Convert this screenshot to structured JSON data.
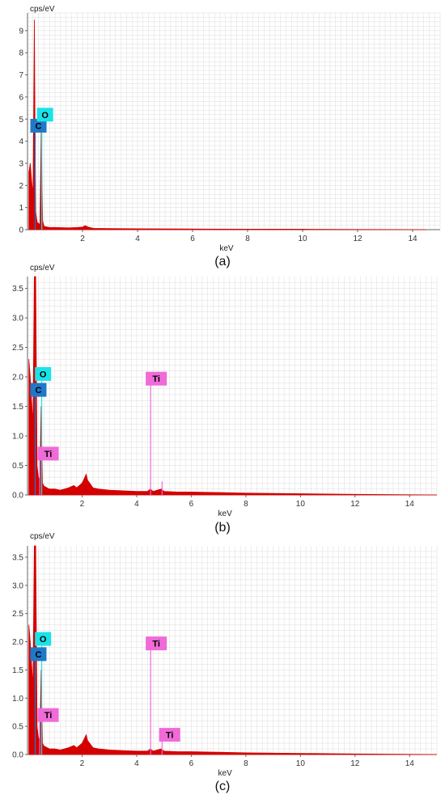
{
  "colors": {
    "spectrum": "#d40000",
    "C": "#1f78c8",
    "O": "#19e3e8",
    "Ti": "#f06ad8",
    "grid": "#dcdcdc"
  },
  "chart_data": [
    {
      "type": "area",
      "caption": "(a)",
      "xlabel": "keV",
      "ylabel": "cps/eV",
      "xlim": [
        0,
        15
      ],
      "ylim": [
        0,
        9.8
      ],
      "xticks": [
        "2",
        "4",
        "6",
        "8",
        "10",
        "12",
        "14"
      ],
      "xtick_values": [
        2,
        4,
        6,
        8,
        10,
        12,
        14
      ],
      "yticks": [
        "0",
        "1",
        "2",
        "3",
        "4",
        "5",
        "6",
        "7",
        "8",
        "9"
      ],
      "ytick_values": [
        0,
        1,
        2,
        3,
        4,
        5,
        6,
        7,
        8,
        9
      ],
      "x_end": 14.5,
      "spectrum": {
        "x": [
          0.05,
          0.1,
          0.15,
          0.2,
          0.25,
          0.28,
          0.3,
          0.33,
          0.36,
          0.4,
          0.45,
          0.5,
          0.55,
          0.6,
          0.8,
          1.0,
          1.5,
          1.8,
          2.0,
          2.1,
          2.2,
          2.4,
          3.0,
          4.0,
          6.0,
          8.0,
          10.0,
          12.0,
          14.5
        ],
        "y": [
          2.6,
          3.0,
          2.2,
          1.6,
          9.5,
          3.2,
          0.8,
          0.5,
          0.3,
          0.3,
          0.2,
          4.5,
          0.4,
          0.15,
          0.1,
          0.1,
          0.08,
          0.1,
          0.12,
          0.18,
          0.12,
          0.06,
          0.05,
          0.04,
          0.03,
          0.02,
          0.02,
          0.01,
          0.0
        ]
      },
      "peaks": [
        {
          "element": "C",
          "x": 0.28,
          "y": 4.7
        },
        {
          "element": "O",
          "x": 0.52,
          "y": 5.2
        }
      ]
    },
    {
      "type": "area",
      "caption": "(b)",
      "xlabel": "keV",
      "ylabel": "cps/eV",
      "xlim": [
        0,
        15
      ],
      "ylim": [
        0,
        3.7
      ],
      "xticks": [
        "2",
        "4",
        "6",
        "8",
        "10",
        "12",
        "14"
      ],
      "xtick_values": [
        2,
        4,
        6,
        8,
        10,
        12,
        14
      ],
      "yticks": [
        "0.0",
        "0.5",
        "1.0",
        "1.5",
        "2.0",
        "2.5",
        "3.0",
        "3.5"
      ],
      "ytick_values": [
        0,
        0.5,
        1.0,
        1.5,
        2.0,
        2.5,
        3.0,
        3.5
      ],
      "x_end": 15,
      "spectrum": {
        "x": [
          0.05,
          0.1,
          0.15,
          0.2,
          0.25,
          0.28,
          0.3,
          0.35,
          0.4,
          0.45,
          0.5,
          0.55,
          0.6,
          0.8,
          1.0,
          1.2,
          1.5,
          1.7,
          1.8,
          2.0,
          2.1,
          2.15,
          2.2,
          2.4,
          2.6,
          3.0,
          3.5,
          4.0,
          4.4,
          4.5,
          4.6,
          4.9,
          5.0,
          5.5,
          6.0,
          7.0,
          8.0,
          10.0,
          12.0,
          15.0
        ],
        "y": [
          2.3,
          2.0,
          1.6,
          1.2,
          3.7,
          3.7,
          3.7,
          0.5,
          0.3,
          0.25,
          1.5,
          0.2,
          0.15,
          0.1,
          0.1,
          0.08,
          0.12,
          0.16,
          0.12,
          0.2,
          0.3,
          0.35,
          0.25,
          0.12,
          0.1,
          0.08,
          0.07,
          0.06,
          0.06,
          0.1,
          0.06,
          0.1,
          0.06,
          0.05,
          0.05,
          0.04,
          0.03,
          0.02,
          0.01,
          0.0
        ]
      },
      "peaks": [
        {
          "element": "C",
          "x": 0.28,
          "y": 1.78
        },
        {
          "element": "O",
          "x": 0.52,
          "y": 2.05
        },
        {
          "element": "Ti",
          "x": 0.45,
          "y": 0.62
        },
        {
          "element": "Ti",
          "x": 4.51,
          "y": 1.9
        },
        {
          "element": "Ti",
          "x": 4.93,
          "y": 0.23
        }
      ],
      "peak_labels": [
        {
          "text": "O",
          "x": 0.45,
          "y": 2.05
        },
        {
          "text": "C",
          "x": 0.28,
          "y": 1.78
        },
        {
          "text": "Ti",
          "x": 0.55,
          "y": 0.7
        },
        {
          "text": "Ti",
          "x": 4.51,
          "y": 1.97
        }
      ]
    },
    {
      "type": "area",
      "caption": "(c)",
      "xlabel": "keV",
      "ylabel": "cps/eV",
      "xlim": [
        0,
        15
      ],
      "ylim": [
        0,
        3.7
      ],
      "xticks": [
        "2",
        "4",
        "6",
        "8",
        "10",
        "12",
        "14"
      ],
      "xtick_values": [
        2,
        4,
        6,
        8,
        10,
        12,
        14
      ],
      "yticks": [
        "0.0",
        "0.5",
        "1.0",
        "1.5",
        "2.0",
        "2.5",
        "3.0",
        "3.5"
      ],
      "ytick_values": [
        0,
        0.5,
        1.0,
        1.5,
        2.0,
        2.5,
        3.0,
        3.5
      ],
      "x_end": 15,
      "spectrum": {
        "x": [
          0.05,
          0.1,
          0.15,
          0.2,
          0.25,
          0.28,
          0.3,
          0.35,
          0.4,
          0.45,
          0.5,
          0.55,
          0.6,
          0.8,
          1.0,
          1.2,
          1.5,
          1.7,
          1.8,
          2.0,
          2.1,
          2.15,
          2.2,
          2.4,
          2.6,
          3.0,
          3.5,
          4.0,
          4.4,
          4.5,
          4.6,
          4.9,
          5.0,
          5.5,
          6.0,
          7.0,
          8.0,
          10.0,
          12.0,
          15.0
        ],
        "y": [
          2.3,
          2.0,
          1.6,
          1.2,
          3.7,
          3.7,
          3.7,
          0.5,
          0.3,
          0.25,
          1.5,
          0.2,
          0.15,
          0.1,
          0.1,
          0.08,
          0.12,
          0.16,
          0.12,
          0.2,
          0.3,
          0.35,
          0.25,
          0.12,
          0.1,
          0.08,
          0.07,
          0.06,
          0.06,
          0.1,
          0.06,
          0.1,
          0.06,
          0.05,
          0.05,
          0.04,
          0.03,
          0.02,
          0.01,
          0.0
        ]
      },
      "peaks": [
        {
          "element": "C",
          "x": 0.28,
          "y": 1.78
        },
        {
          "element": "O",
          "x": 0.52,
          "y": 2.05
        },
        {
          "element": "Ti",
          "x": 0.45,
          "y": 0.62
        },
        {
          "element": "Ti",
          "x": 4.51,
          "y": 1.9
        },
        {
          "element": "Ti",
          "x": 4.93,
          "y": 0.23
        }
      ],
      "peak_labels": [
        {
          "text": "O",
          "x": 0.45,
          "y": 2.05
        },
        {
          "text": "C",
          "x": 0.28,
          "y": 1.78
        },
        {
          "text": "Ti",
          "x": 0.55,
          "y": 0.7
        },
        {
          "text": "Ti",
          "x": 4.51,
          "y": 1.97
        },
        {
          "text": "Ti",
          "x": 5.0,
          "y": 0.35
        }
      ]
    }
  ]
}
